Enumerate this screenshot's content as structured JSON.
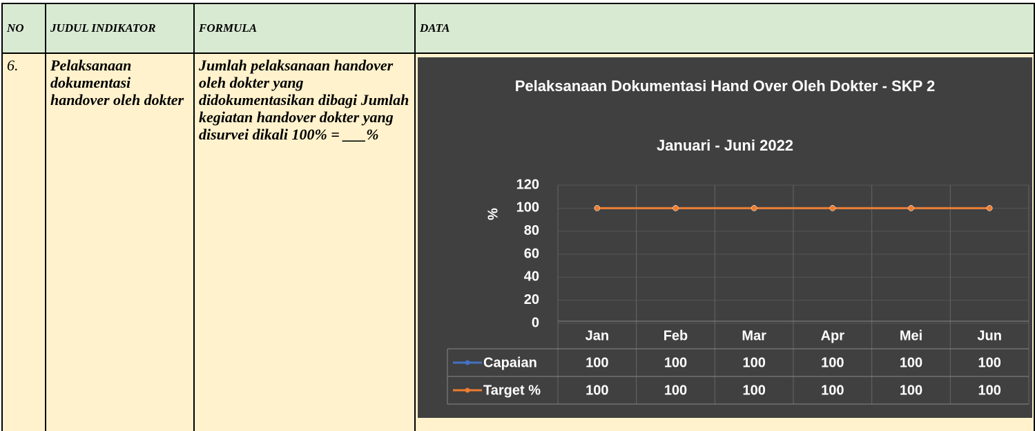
{
  "table": {
    "headers": [
      "NO",
      "JUDUL INDIKATOR",
      "FORMULA",
      "DATA"
    ],
    "rows": [
      [
        "6.",
        "Pelaksanaan dokumentasi handover oleh dokter",
        "Jumlah pelaksanaan handover oleh dokter yang didokumentasikan dibagi Jumlah kegiatan handover dokter yang disurvei dikali 100% = ___%"
      ]
    ]
  },
  "chart_data": {
    "type": "line",
    "title": "Pelaksanaan Dokumentasi Hand Over Oleh Dokter - SKP 2",
    "subtitle": "Januari - Juni 2022",
    "y_label": "%",
    "categories": [
      "Jan",
      "Feb",
      "Mar",
      "Apr",
      "Mei",
      "Jun"
    ],
    "series": [
      {
        "name": "Capaian",
        "color": "#4472c4",
        "values": [
          100,
          100,
          100,
          100,
          100,
          100
        ]
      },
      {
        "name": "Target %",
        "color": "#ed7d31",
        "values": [
          100,
          100,
          100,
          100,
          100,
          100
        ]
      }
    ],
    "ylim": [
      0,
      120
    ],
    "yticks": [
      0,
      20,
      40,
      60,
      80,
      100,
      120
    ],
    "grid": true
  }
}
